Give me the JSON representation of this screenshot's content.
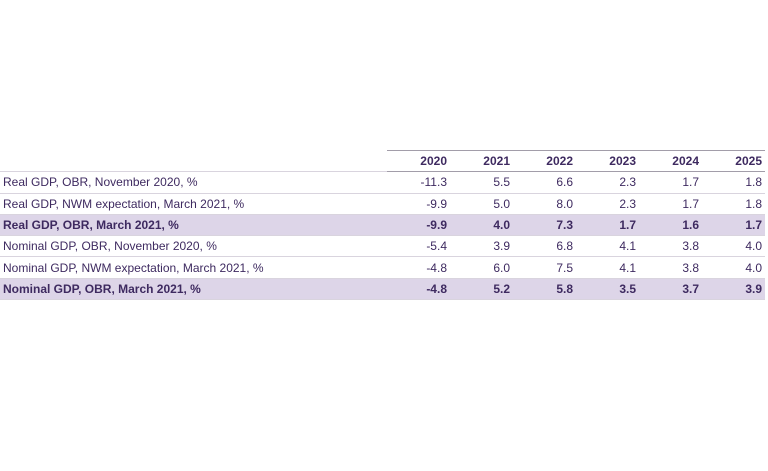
{
  "table": {
    "years": [
      "2020",
      "2021",
      "2022",
      "2023",
      "2024",
      "2025"
    ],
    "rows": [
      {
        "label": "Real GDP, OBR, November 2020, %",
        "values": [
          "-11.3",
          "5.5",
          "6.6",
          "2.3",
          "1.7",
          "1.8"
        ],
        "highlighted": false
      },
      {
        "label": "Real GDP, NWM expectation, March 2021, %",
        "values": [
          "-9.9",
          "5.0",
          "8.0",
          "2.3",
          "1.7",
          "1.8"
        ],
        "highlighted": false
      },
      {
        "label": "Real GDP, OBR, March 2021, %",
        "values": [
          "-9.9",
          "4.0",
          "7.3",
          "1.7",
          "1.6",
          "1.7"
        ],
        "highlighted": true
      },
      {
        "label": "Nominal GDP, OBR, November 2020, %",
        "values": [
          "-5.4",
          "3.9",
          "6.8",
          "4.1",
          "3.8",
          "4.0"
        ],
        "highlighted": false
      },
      {
        "label": "Nominal GDP, NWM expectation, March 2021, %",
        "values": [
          "-4.8",
          "6.0",
          "7.5",
          "4.1",
          "3.8",
          "4.0"
        ],
        "highlighted": false
      },
      {
        "label": "Nominal GDP, OBR, March 2021, %",
        "values": [
          "-4.8",
          "5.2",
          "5.8",
          "3.5",
          "3.7",
          "3.9"
        ],
        "highlighted": true
      }
    ]
  },
  "colors": {
    "text": "#3e2a60",
    "highlight_row_bg": "#ddd5e8",
    "border_light": "#d9d4de",
    "border_medium": "#a29da9",
    "background": "#ffffff"
  },
  "chart_data": {
    "type": "table",
    "title": "",
    "categories": [
      "2020",
      "2021",
      "2022",
      "2023",
      "2024",
      "2025"
    ],
    "series": [
      {
        "name": "Real GDP, OBR, November 2020, %",
        "values": [
          -11.3,
          5.5,
          6.6,
          2.3,
          1.7,
          1.8
        ]
      },
      {
        "name": "Real GDP, NWM expectation, March 2021, %",
        "values": [
          -9.9,
          5.0,
          8.0,
          2.3,
          1.7,
          1.8
        ]
      },
      {
        "name": "Real GDP, OBR, March 2021, %",
        "values": [
          -9.9,
          4.0,
          7.3,
          1.7,
          1.6,
          1.7
        ]
      },
      {
        "name": "Nominal GDP, OBR, November 2020, %",
        "values": [
          -5.4,
          3.9,
          6.8,
          4.1,
          3.8,
          4.0
        ]
      },
      {
        "name": "Nominal GDP, NWM expectation, March 2021, %",
        "values": [
          -4.8,
          6.0,
          7.5,
          4.1,
          3.8,
          4.0
        ]
      },
      {
        "name": "Nominal GDP, OBR, March 2021, %",
        "values": [
          -4.8,
          5.2,
          5.8,
          3.5,
          3.7,
          3.9
        ]
      }
    ],
    "layout": {
      "grid": "row-separators",
      "highlighted_rows": [
        2,
        5
      ],
      "value_alignment": "right"
    }
  }
}
